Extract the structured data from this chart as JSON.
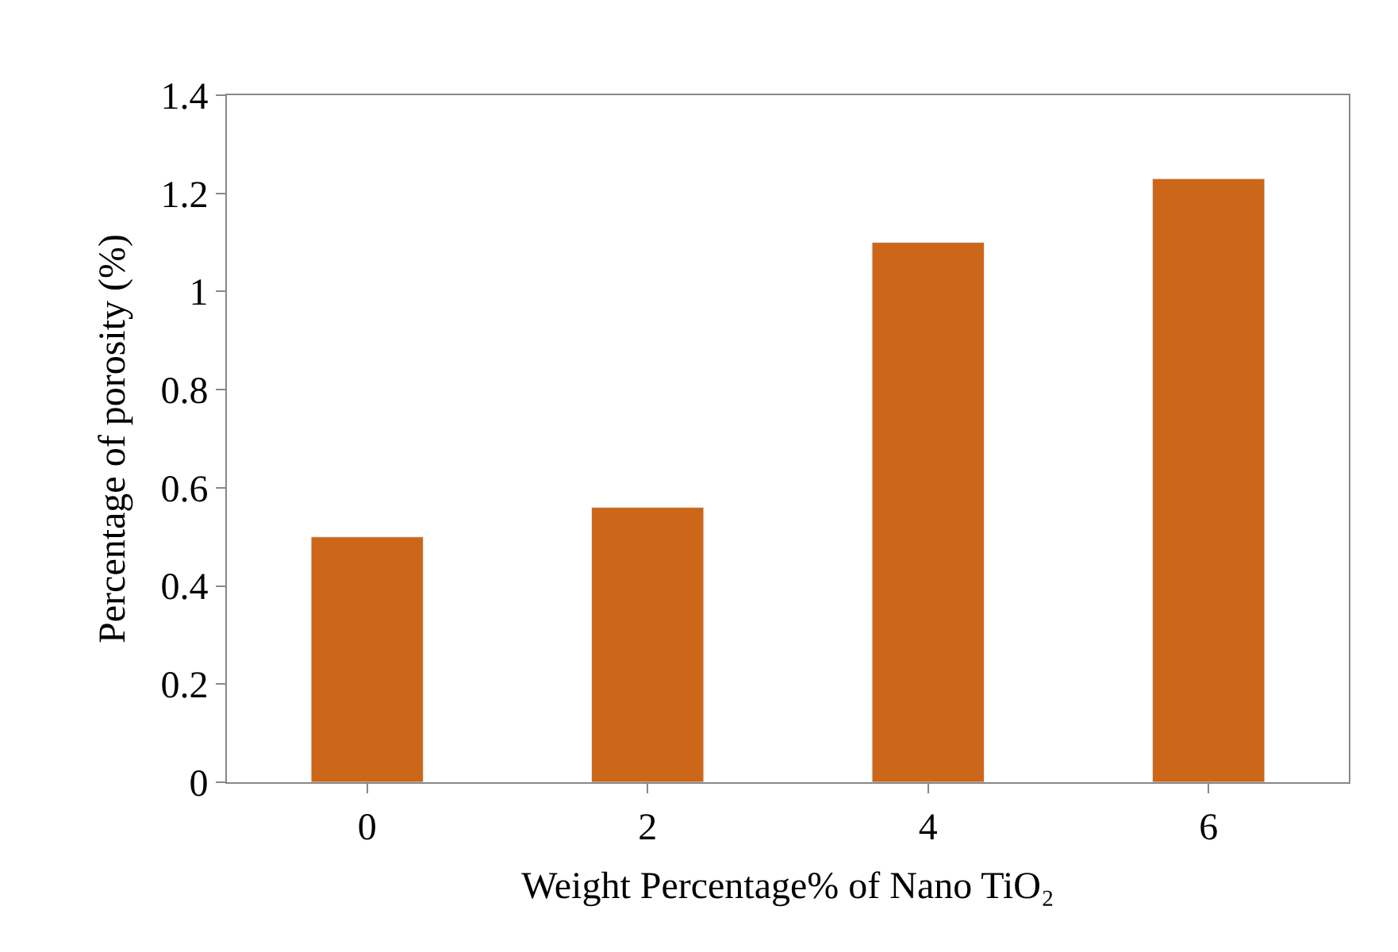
{
  "chart_data": {
    "type": "bar",
    "xlabel": "Weight Percentage% of Nano TiO₂",
    "ylabel": "Percentage of porosity (%)",
    "categories": [
      "0",
      "2",
      "4",
      "6"
    ],
    "values": [
      0.5,
      0.56,
      1.1,
      1.23
    ],
    "color": "#cc6619",
    "ylim": [
      0,
      1.4
    ],
    "yticks": [
      0,
      0.2,
      0.4,
      0.6,
      0.8,
      1,
      1.2,
      1.4
    ],
    "legend": false
  }
}
